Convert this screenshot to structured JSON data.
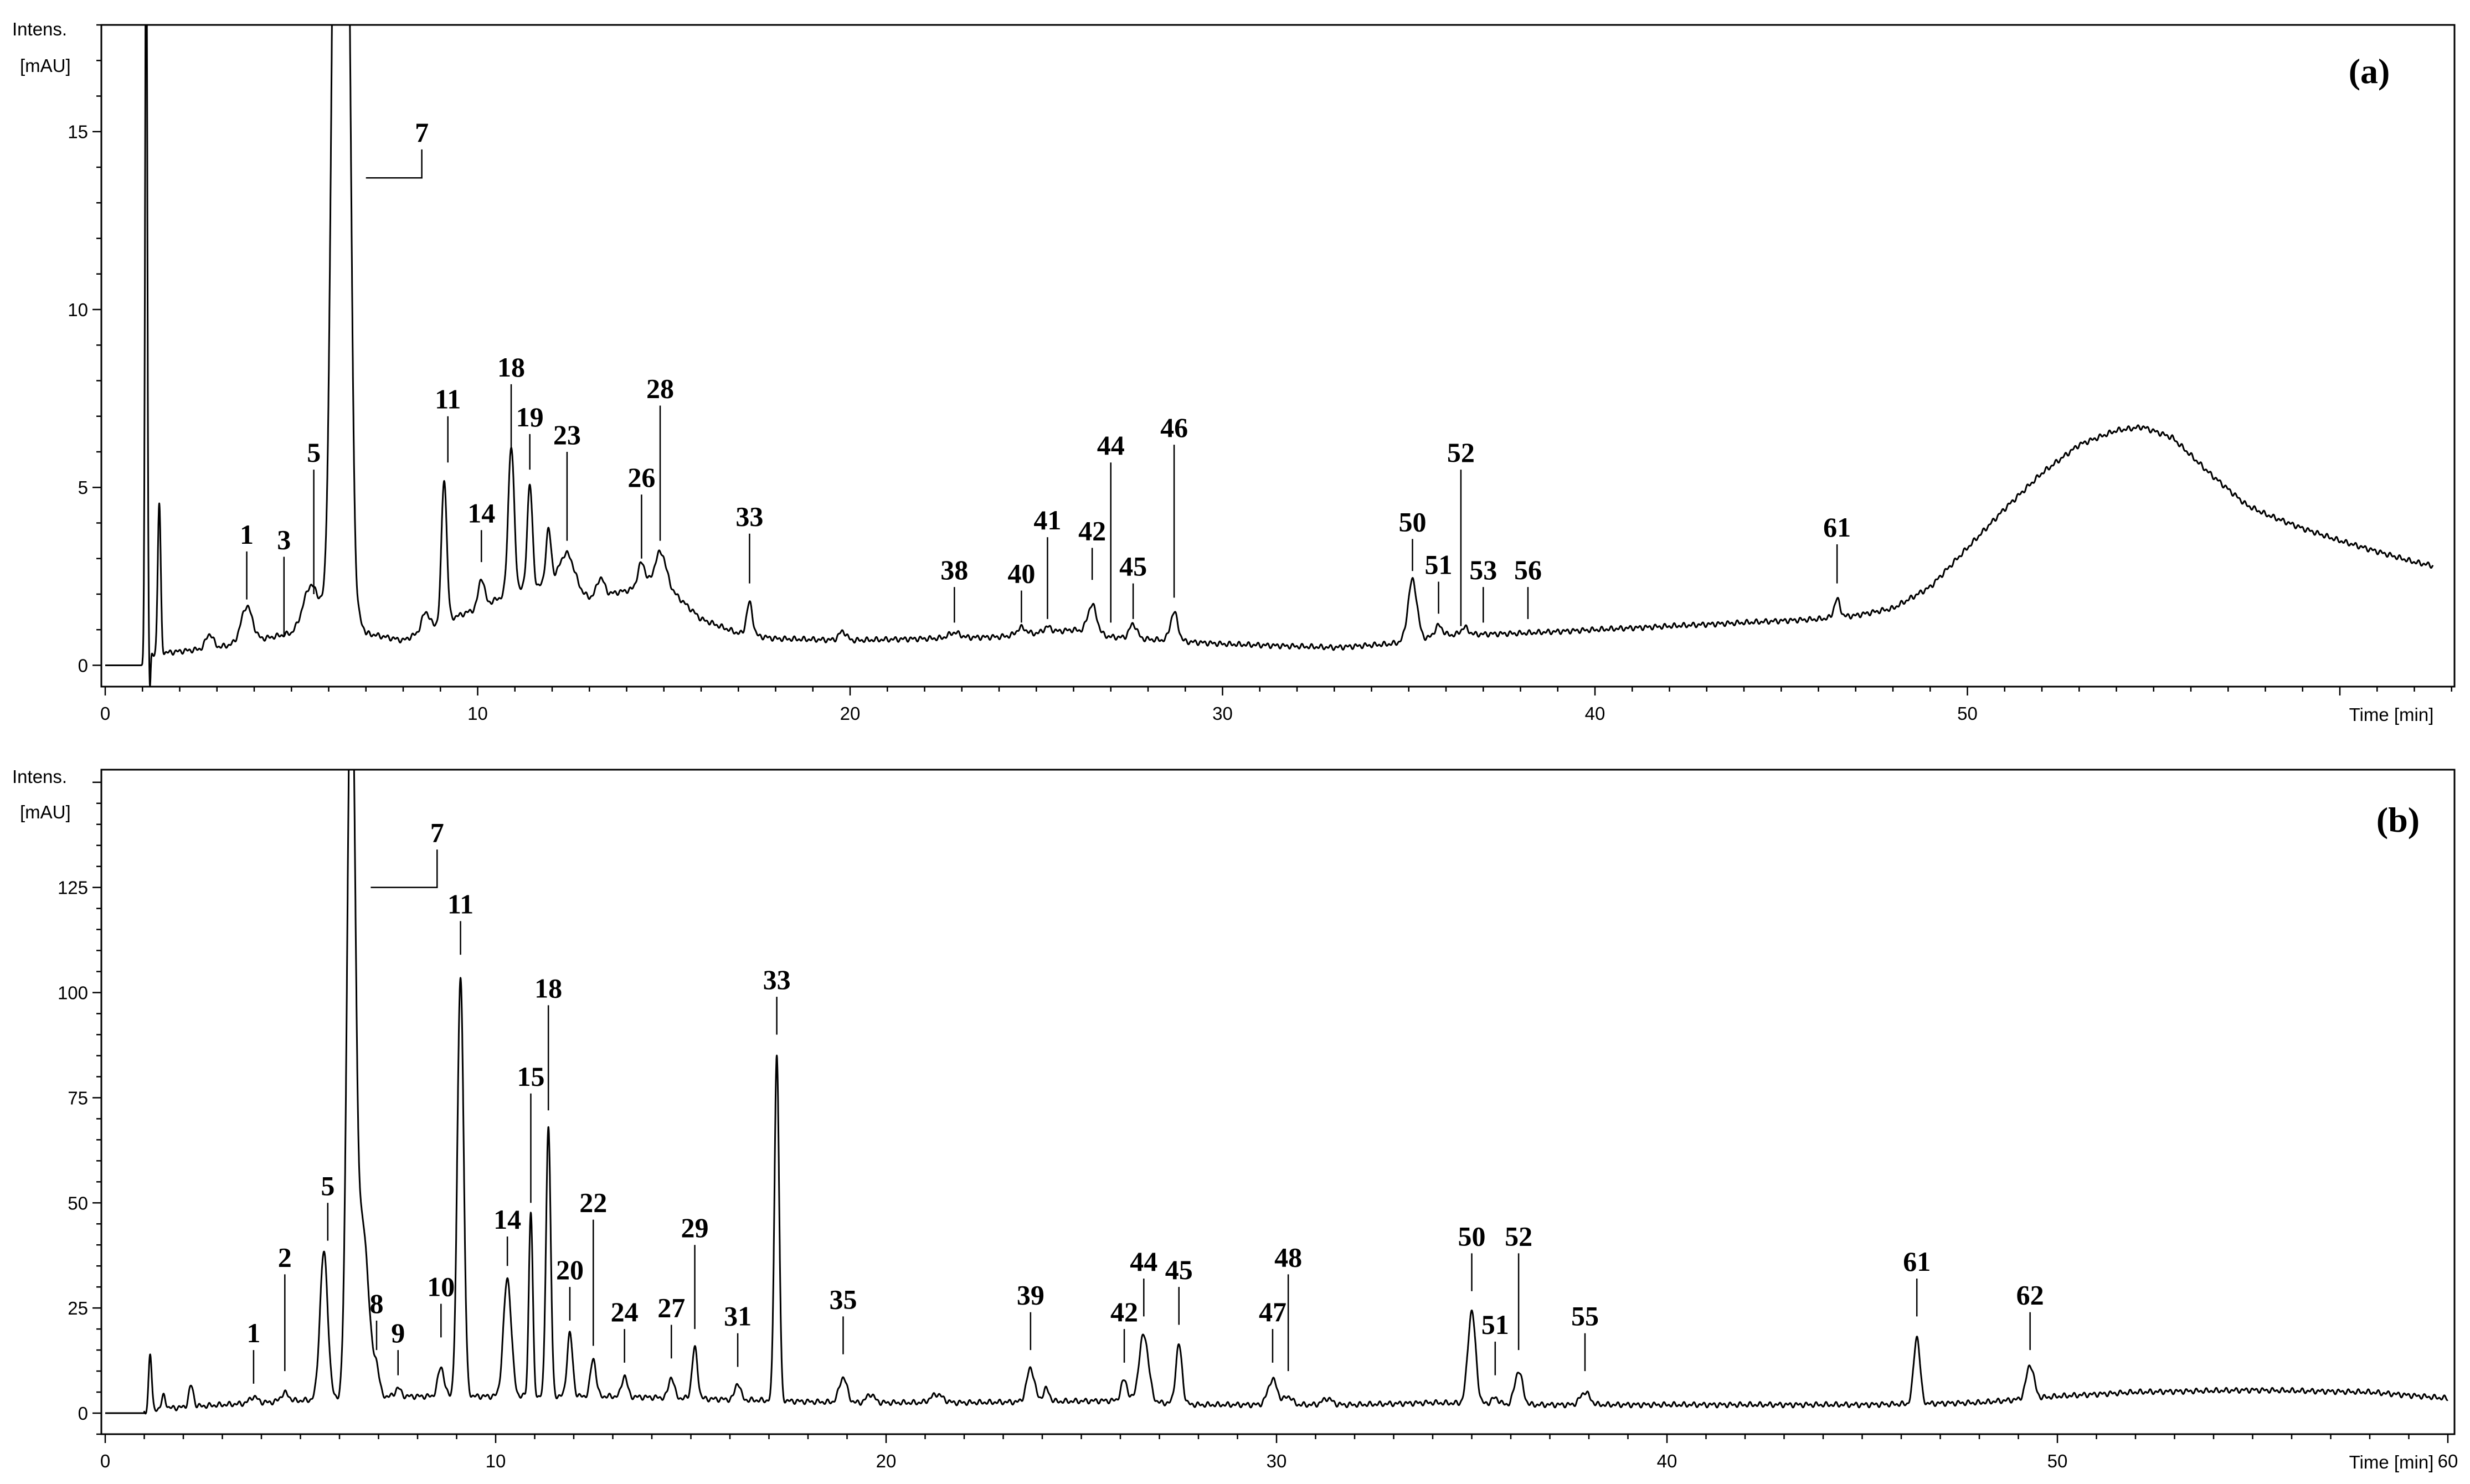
{
  "chart_data": [
    {
      "type": "line",
      "panel_label": "(a)",
      "ylabel": [
        "Intens.",
        "[mAU]"
      ],
      "xlabel": "Time [min]",
      "xlim": [
        0,
        63
      ],
      "ylim": [
        -0.6,
        18
      ],
      "xticks": [
        0,
        10,
        20,
        30,
        40,
        50
      ],
      "yticks": [
        0,
        5,
        10,
        15
      ],
      "baseline": [
        [
          0,
          0
        ],
        [
          1,
          0
        ],
        [
          1.15,
          0.3
        ],
        [
          3,
          0.5
        ],
        [
          5,
          0.9
        ],
        [
          6.5,
          2.2
        ],
        [
          7,
          0.9
        ],
        [
          8,
          0.7
        ],
        [
          9,
          1.2
        ],
        [
          10,
          1.6
        ],
        [
          11,
          2.1
        ],
        [
          12,
          2.3
        ],
        [
          13,
          1.9
        ],
        [
          14,
          2.1
        ],
        [
          15,
          2.3
        ],
        [
          16,
          1.3
        ],
        [
          17,
          0.9
        ],
        [
          18,
          0.75
        ],
        [
          20,
          0.7
        ],
        [
          22,
          0.75
        ],
        [
          24,
          0.8
        ],
        [
          26,
          1.0
        ],
        [
          27,
          0.8
        ],
        [
          30,
          0.6
        ],
        [
          33,
          0.5
        ],
        [
          34.5,
          0.6
        ],
        [
          36,
          0.85
        ],
        [
          38,
          0.9
        ],
        [
          40,
          1.0
        ],
        [
          44,
          1.2
        ],
        [
          46,
          1.3
        ],
        [
          47,
          1.4
        ],
        [
          48,
          1.6
        ],
        [
          49,
          2.2
        ],
        [
          50,
          3.3
        ],
        [
          51,
          4.4
        ],
        [
          52,
          5.4
        ],
        [
          53,
          6.2
        ],
        [
          54,
          6.6
        ],
        [
          54.7,
          6.7
        ],
        [
          55.5,
          6.4
        ],
        [
          56.5,
          5.4
        ],
        [
          57.5,
          4.5
        ],
        [
          58,
          4.25
        ],
        [
          59,
          3.85
        ],
        [
          60,
          3.5
        ],
        [
          61,
          3.2
        ],
        [
          62,
          2.9
        ],
        [
          62.5,
          2.8
        ]
      ],
      "peaks": [
        {
          "t": 1.1,
          "h": 22,
          "w": 0.03
        },
        {
          "t": 1.2,
          "h": -1,
          "w": 0.02
        },
        {
          "t": 1.45,
          "h": 4.2,
          "w": 0.04
        },
        {
          "t": 2.8,
          "h": 0.4,
          "w": 0.1
        },
        {
          "t": 3.8,
          "h": 1.0,
          "w": 0.15
        },
        {
          "t": 5.5,
          "h": 0.9,
          "w": 0.18
        },
        {
          "t": 6.2,
          "h": 25,
          "w": 0.12
        },
        {
          "t": 6.5,
          "h": 20,
          "w": 0.1
        },
        {
          "t": 8.6,
          "h": 0.5,
          "w": 0.1
        },
        {
          "t": 9.1,
          "h": 4.0,
          "w": 0.07
        },
        {
          "t": 10.1,
          "h": 0.8,
          "w": 0.08
        },
        {
          "t": 10.9,
          "h": 4.1,
          "w": 0.08
        },
        {
          "t": 11.4,
          "h": 2.9,
          "w": 0.07
        },
        {
          "t": 11.9,
          "h": 1.5,
          "w": 0.07
        },
        {
          "t": 12.4,
          "h": 1.0,
          "w": 0.2
        },
        {
          "t": 13.3,
          "h": 0.5,
          "w": 0.1
        },
        {
          "t": 14.4,
          "h": 0.7,
          "w": 0.1
        },
        {
          "t": 14.9,
          "h": 0.9,
          "w": 0.15
        },
        {
          "t": 17.3,
          "h": 0.9,
          "w": 0.08
        },
        {
          "t": 19.8,
          "h": 0.25,
          "w": 0.1
        },
        {
          "t": 22.8,
          "h": 0.15,
          "w": 0.15
        },
        {
          "t": 24.6,
          "h": 0.2,
          "w": 0.12
        },
        {
          "t": 25.3,
          "h": 0.15,
          "w": 0.1
        },
        {
          "t": 26.5,
          "h": 0.8,
          "w": 0.12
        },
        {
          "t": 27.6,
          "h": 0.4,
          "w": 0.1
        },
        {
          "t": 28.7,
          "h": 0.8,
          "w": 0.1
        },
        {
          "t": 35.1,
          "h": 1.7,
          "w": 0.12
        },
        {
          "t": 35.8,
          "h": 0.3,
          "w": 0.1
        },
        {
          "t": 36.5,
          "h": 0.2,
          "w": 0.1
        },
        {
          "t": 46.5,
          "h": 0.5,
          "w": 0.08
        }
      ],
      "annotations": [
        {
          "label": "1",
          "t": 3.8,
          "tip": 1.85,
          "base": 3.2
        },
        {
          "label": "3",
          "t": 4.8,
          "tip": 0.8,
          "base": 3.05
        },
        {
          "label": "5",
          "t": 5.6,
          "tip": 2.0,
          "base": 5.5
        },
        {
          "label": "7",
          "t": 8.5,
          "tip": 13.7,
          "base": 14.5,
          "bracket_left": 7.0
        },
        {
          "label": "11",
          "t": 9.2,
          "tip": 5.7,
          "base": 7.0
        },
        {
          "label": "14",
          "t": 10.1,
          "tip": 2.9,
          "base": 3.8
        },
        {
          "label": "18",
          "t": 10.9,
          "tip": 6.0,
          "base": 7.9
        },
        {
          "label": "19",
          "t": 11.4,
          "tip": 5.5,
          "base": 6.5
        },
        {
          "label": "23",
          "t": 12.4,
          "tip": 3.5,
          "base": 6.0
        },
        {
          "label": "26",
          "t": 14.4,
          "tip": 3.0,
          "base": 4.8
        },
        {
          "label": "28",
          "t": 14.9,
          "tip": 3.5,
          "base": 7.3
        },
        {
          "label": "33",
          "t": 17.3,
          "tip": 2.3,
          "base": 3.7
        },
        {
          "label": "38",
          "t": 22.8,
          "tip": 1.2,
          "base": 2.2
        },
        {
          "label": "40",
          "t": 24.6,
          "tip": 1.2,
          "base": 2.1
        },
        {
          "label": "41",
          "t": 25.3,
          "tip": 1.3,
          "base": 3.6
        },
        {
          "label": "42",
          "t": 26.5,
          "tip": 2.4,
          "base": 3.3
        },
        {
          "label": "44",
          "t": 27.0,
          "tip": 1.2,
          "base": 5.7
        },
        {
          "label": "45",
          "t": 27.6,
          "tip": 1.3,
          "base": 2.3
        },
        {
          "label": "46",
          "t": 28.7,
          "tip": 1.9,
          "base": 6.2
        },
        {
          "label": "50",
          "t": 35.1,
          "tip": 2.65,
          "base": 3.55
        },
        {
          "label": "51",
          "t": 35.8,
          "tip": 1.45,
          "base": 2.35
        },
        {
          "label": "52",
          "t": 36.4,
          "tip": 1.1,
          "base": 5.5
        },
        {
          "label": "53",
          "t": 37.0,
          "tip": 1.2,
          "base": 2.2
        },
        {
          "label": "56",
          "t": 38.2,
          "tip": 1.3,
          "base": 2.2
        },
        {
          "label": "61",
          "t": 46.5,
          "tip": 2.3,
          "base": 3.4
        }
      ]
    },
    {
      "type": "line",
      "panel_label": "(b)",
      "ylabel": [
        "Intens.",
        "[mAU]"
      ],
      "xlabel": "Time [min]",
      "xlim": [
        0,
        60.2
      ],
      "ylim": [
        -5,
        153
      ],
      "xticks": [
        0,
        10,
        20,
        30,
        40,
        50,
        60
      ],
      "yticks": [
        0,
        25,
        50,
        75,
        100,
        125
      ],
      "baseline": [
        [
          0,
          0
        ],
        [
          1.1,
          0
        ],
        [
          1.3,
          1.0
        ],
        [
          3,
          2
        ],
        [
          5,
          3
        ],
        [
          7,
          4
        ],
        [
          10,
          4
        ],
        [
          13,
          4
        ],
        [
          15,
          3.5
        ],
        [
          17,
          3
        ],
        [
          19,
          2.5
        ],
        [
          22,
          2.5
        ],
        [
          26,
          3
        ],
        [
          28,
          2
        ],
        [
          32,
          2
        ],
        [
          34,
          2.5
        ],
        [
          36,
          2
        ],
        [
          40,
          2
        ],
        [
          45,
          2
        ],
        [
          48,
          2.5
        ],
        [
          50,
          4
        ],
        [
          52,
          5
        ],
        [
          55,
          5.5
        ],
        [
          58,
          5
        ],
        [
          60,
          3.5
        ]
      ],
      "peaks": [
        {
          "t": 1.15,
          "h": 14,
          "w": 0.04
        },
        {
          "t": 1.5,
          "h": 3,
          "w": 0.05
        },
        {
          "t": 2.2,
          "h": 5,
          "w": 0.06
        },
        {
          "t": 3.8,
          "h": 1.5,
          "w": 0.1
        },
        {
          "t": 4.6,
          "h": 2,
          "w": 0.1
        },
        {
          "t": 5.6,
          "h": 35,
          "w": 0.1
        },
        {
          "t": 6.3,
          "h": 180,
          "w": 0.1
        },
        {
          "t": 6.6,
          "h": 40,
          "w": 0.15
        },
        {
          "t": 6.95,
          "h": 6,
          "w": 0.07
        },
        {
          "t": 7.5,
          "h": 2,
          "w": 0.07
        },
        {
          "t": 8.6,
          "h": 7,
          "w": 0.08
        },
        {
          "t": 9.1,
          "h": 100,
          "w": 0.08
        },
        {
          "t": 10.3,
          "h": 28,
          "w": 0.1
        },
        {
          "t": 10.9,
          "h": 44,
          "w": 0.05
        },
        {
          "t": 11.35,
          "h": 64,
          "w": 0.06
        },
        {
          "t": 11.9,
          "h": 15,
          "w": 0.07
        },
        {
          "t": 12.5,
          "h": 9,
          "w": 0.07
        },
        {
          "t": 13.3,
          "h": 5,
          "w": 0.07
        },
        {
          "t": 14.5,
          "h": 5,
          "w": 0.07
        },
        {
          "t": 15.1,
          "h": 12,
          "w": 0.07
        },
        {
          "t": 16.2,
          "h": 4,
          "w": 0.07
        },
        {
          "t": 17.2,
          "h": 82,
          "w": 0.06
        },
        {
          "t": 18.9,
          "h": 6,
          "w": 0.1
        },
        {
          "t": 19.6,
          "h": 2,
          "w": 0.1
        },
        {
          "t": 21.3,
          "h": 2,
          "w": 0.15
        },
        {
          "t": 23.7,
          "h": 8,
          "w": 0.1
        },
        {
          "t": 24.1,
          "h": 3,
          "w": 0.08
        },
        {
          "t": 26.1,
          "h": 5,
          "w": 0.08
        },
        {
          "t": 26.6,
          "h": 16,
          "w": 0.12
        },
        {
          "t": 27.5,
          "h": 14,
          "w": 0.08
        },
        {
          "t": 29.9,
          "h": 6,
          "w": 0.12
        },
        {
          "t": 30.3,
          "h": 2,
          "w": 0.1
        },
        {
          "t": 31.3,
          "h": 1.5,
          "w": 0.12
        },
        {
          "t": 35.0,
          "h": 22,
          "w": 0.1
        },
        {
          "t": 35.6,
          "h": 1.5,
          "w": 0.1
        },
        {
          "t": 36.2,
          "h": 8,
          "w": 0.1
        },
        {
          "t": 37.9,
          "h": 3,
          "w": 0.12
        },
        {
          "t": 46.4,
          "h": 16,
          "w": 0.08
        },
        {
          "t": 49.3,
          "h": 8,
          "w": 0.1
        }
      ],
      "annotations": [
        {
          "label": "1",
          "t": 3.8,
          "tip": 7,
          "base": 15
        },
        {
          "label": "2",
          "t": 4.6,
          "tip": 10,
          "base": 33
        },
        {
          "label": "5",
          "t": 5.7,
          "tip": 41,
          "base": 50
        },
        {
          "label": "7",
          "t": 8.5,
          "tip": 125,
          "base": 134,
          "bracket_left": 6.8
        },
        {
          "label": "8",
          "t": 6.95,
          "tip": 15,
          "base": 22
        },
        {
          "label": "9",
          "t": 7.5,
          "tip": 9,
          "base": 15
        },
        {
          "label": "10",
          "t": 8.6,
          "tip": 18,
          "base": 26
        },
        {
          "label": "11",
          "t": 9.1,
          "tip": 109,
          "base": 117
        },
        {
          "label": "14",
          "t": 10.3,
          "tip": 35,
          "base": 42
        },
        {
          "label": "15",
          "t": 10.9,
          "tip": 50,
          "base": 76
        },
        {
          "label": "18",
          "t": 11.35,
          "tip": 72,
          "base": 97
        },
        {
          "label": "20",
          "t": 11.9,
          "tip": 22,
          "base": 30
        },
        {
          "label": "22",
          "t": 12.5,
          "tip": 16,
          "base": 46
        },
        {
          "label": "24",
          "t": 13.3,
          "tip": 12,
          "base": 20
        },
        {
          "label": "27",
          "t": 14.5,
          "tip": 13,
          "base": 21
        },
        {
          "label": "29",
          "t": 15.1,
          "tip": 20,
          "base": 40
        },
        {
          "label": "31",
          "t": 16.2,
          "tip": 11,
          "base": 19
        },
        {
          "label": "33",
          "t": 17.2,
          "tip": 90,
          "base": 99
        },
        {
          "label": "35",
          "t": 18.9,
          "tip": 14,
          "base": 23
        },
        {
          "label": "39",
          "t": 23.7,
          "tip": 15,
          "base": 24
        },
        {
          "label": "42",
          "t": 26.1,
          "tip": 12,
          "base": 20
        },
        {
          "label": "44",
          "t": 26.6,
          "tip": 23,
          "base": 32
        },
        {
          "label": "45",
          "t": 27.5,
          "tip": 21,
          "base": 30
        },
        {
          "label": "47",
          "t": 29.9,
          "tip": 12,
          "base": 20
        },
        {
          "label": "48",
          "t": 30.3,
          "tip": 10,
          "base": 33
        },
        {
          "label": "50",
          "t": 35.0,
          "tip": 29,
          "base": 38
        },
        {
          "label": "51",
          "t": 35.6,
          "tip": 9,
          "base": 17
        },
        {
          "label": "52",
          "t": 36.2,
          "tip": 15,
          "base": 38
        },
        {
          "label": "55",
          "t": 37.9,
          "tip": 10,
          "base": 19
        },
        {
          "label": "61",
          "t": 46.4,
          "tip": 23,
          "base": 32
        },
        {
          "label": "62",
          "t": 49.3,
          "tip": 15,
          "base": 24
        }
      ]
    }
  ]
}
